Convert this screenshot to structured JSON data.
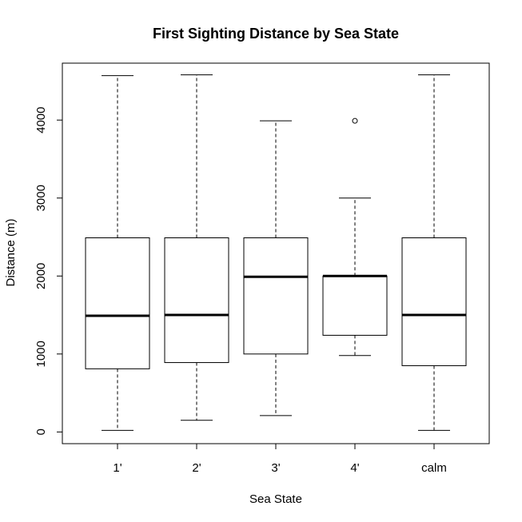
{
  "chart_data": {
    "type": "boxplot",
    "title": "First Sighting Distance by Sea State",
    "xlabel": "Sea State",
    "ylabel": "Distance (m)",
    "ylim": [
      -150,
      4730
    ],
    "y_ticks": [
      0,
      1000,
      2000,
      3000,
      4000
    ],
    "y_tick_labels": [
      "0",
      "1000",
      "2000",
      "3000",
      "4000"
    ],
    "categories": [
      "1'",
      "2'",
      "3'",
      "4'",
      "calm"
    ],
    "boxes": [
      {
        "name": "1'",
        "whisker_low": 20,
        "q1": 810,
        "median": 1490,
        "q3": 2490,
        "whisker_high": 4570,
        "outliers": []
      },
      {
        "name": "2'",
        "whisker_low": 150,
        "q1": 890,
        "median": 1500,
        "q3": 2490,
        "whisker_high": 4580,
        "outliers": []
      },
      {
        "name": "3'",
        "whisker_low": 210,
        "q1": 1000,
        "median": 1990,
        "q3": 2490,
        "whisker_high": 3990,
        "outliers": []
      },
      {
        "name": "4'",
        "whisker_low": 980,
        "q1": 1240,
        "median": 2000,
        "q3": 2000,
        "whisker_high": 3000,
        "outliers": [
          3990
        ]
      },
      {
        "name": "calm",
        "whisker_low": 20,
        "q1": 850,
        "median": 1500,
        "q3": 2490,
        "whisker_high": 4580,
        "outliers": []
      }
    ]
  }
}
